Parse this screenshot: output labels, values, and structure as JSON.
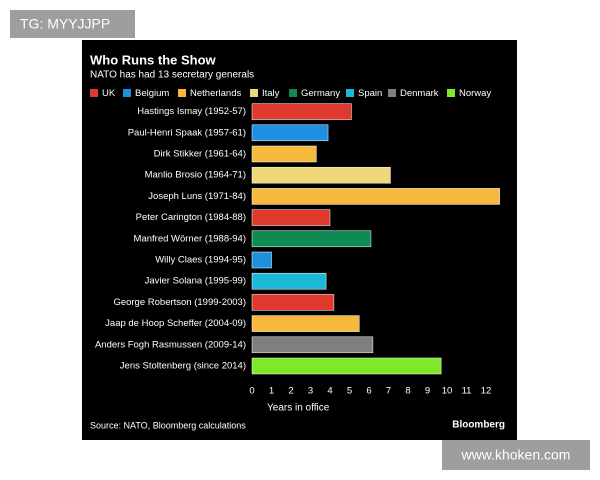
{
  "watermarks": {
    "top": "TG: MYYJJPP",
    "bottom": "www.khoken.com"
  },
  "chart_data": {
    "type": "bar",
    "orientation": "horizontal",
    "title": "Who Runs the Show",
    "subtitle": "NATO has had 13 secretary generals",
    "legend": [
      {
        "name": "UK",
        "color": "#e03a2f"
      },
      {
        "name": "Belgium",
        "color": "#1f8fe0"
      },
      {
        "name": "Netherlands",
        "color": "#f6b93b"
      },
      {
        "name": "Italy",
        "color": "#f0d77a"
      },
      {
        "name": "Germany",
        "color": "#0f8a52"
      },
      {
        "name": "Spain",
        "color": "#1cb8d8"
      },
      {
        "name": "Denmark",
        "color": "#7f7f7f"
      },
      {
        "name": "Norway",
        "color": "#7ee82a"
      }
    ],
    "categories": [
      "Hastings Ismay (1952-57)",
      "Paul-Henri Spaak (1957-61)",
      "Dirk Stikker (1961-64)",
      "Manlio Brosio (1964-71)",
      "Joseph Luns (1971-84)",
      "Peter Carington (1984-88)",
      "Manfred Wörner (1988-94)",
      "Willy Claes (1994-95)",
      "Javier Solana (1995-99)",
      "George Robertson (1999-2003)",
      "Jaap de Hoop Scheffer (2004-09)",
      "Anders Fogh Rasmussen (2009-14)",
      "Jens Stoltenberg (since 2014)"
    ],
    "values": [
      5.1,
      3.9,
      3.3,
      7.1,
      12.7,
      4.0,
      6.1,
      1.0,
      3.8,
      4.2,
      5.5,
      6.2,
      9.7
    ],
    "bar_colors": [
      "#e03a2f",
      "#1f8fe0",
      "#f6b93b",
      "#f0d77a",
      "#f6b93b",
      "#e03a2f",
      "#0f8a52",
      "#1f8fe0",
      "#1cb8d8",
      "#e03a2f",
      "#f6b93b",
      "#7f7f7f",
      "#7ee82a"
    ],
    "xlim": [
      0,
      13
    ],
    "xticks": [
      0,
      1,
      2,
      3,
      4,
      5,
      6,
      7,
      8,
      9,
      10,
      11,
      12
    ],
    "x_label": "Years in office",
    "source": "Source: NATO, Bloomberg calculations",
    "brand": "Bloomberg"
  }
}
